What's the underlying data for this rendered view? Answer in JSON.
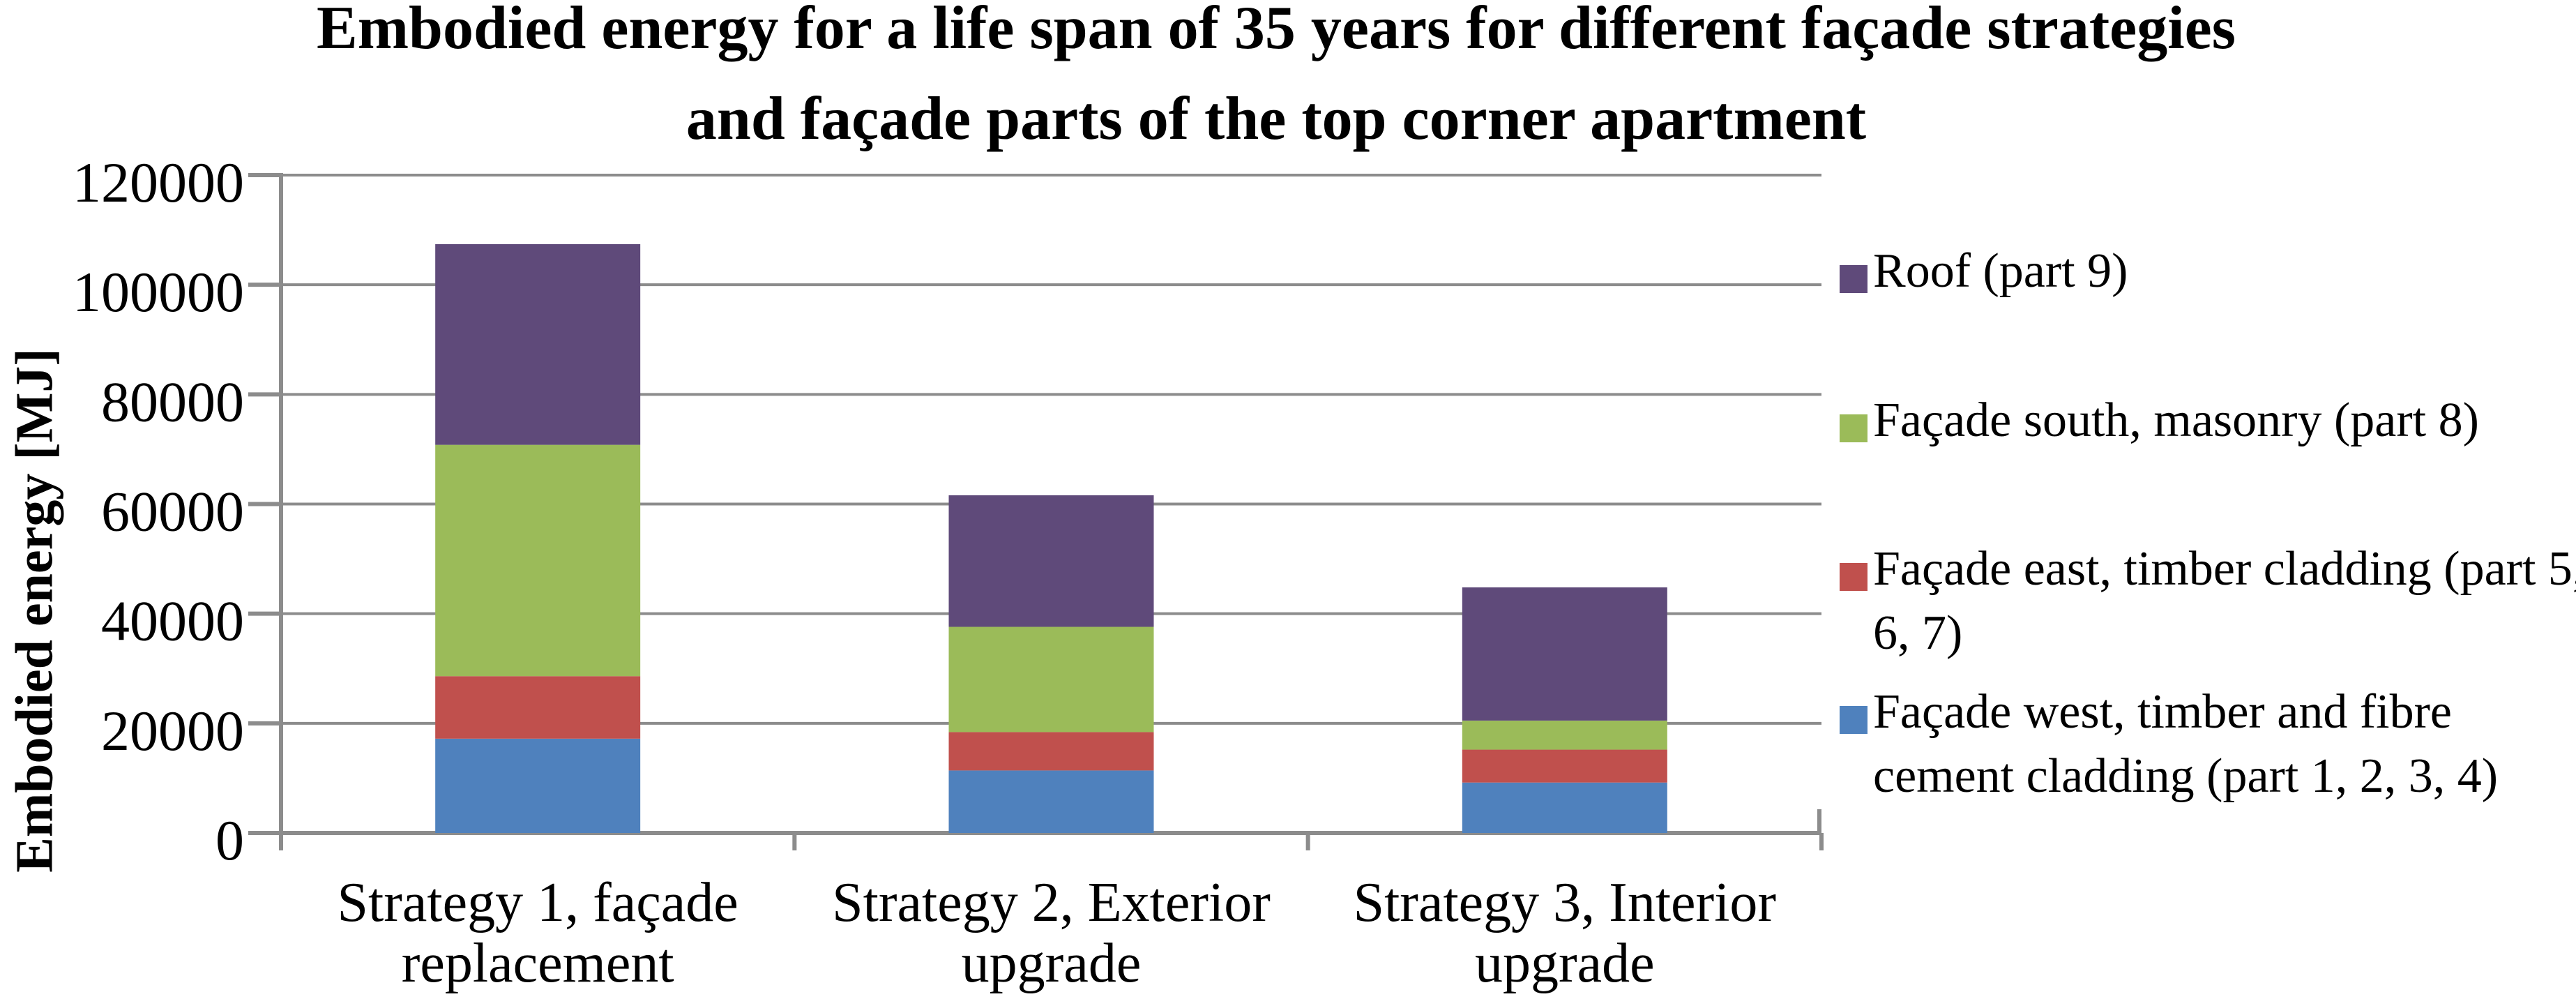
{
  "page": {
    "background": "#FFFFFF",
    "text_color": "#000000"
  },
  "chart_data": {
    "type": "bar",
    "stacked": true,
    "title": "Embodied energy for a life span of 35 years for different façade strategies and façade parts of the top corner apartment",
    "title_lines": [
      "Embodied energy for a life span of 35 years for different façade strategies",
      "and façade parts of the top corner apartment"
    ],
    "ylabel": "Embodied energy [MJ]",
    "xlabel": "",
    "ylim": [
      0,
      120000
    ],
    "ytick_interval": 20000,
    "yticks": [
      0,
      20000,
      40000,
      60000,
      80000,
      100000,
      120000
    ],
    "grid": true,
    "grid_color": "#8C8C8C",
    "axis_color": "#8C8C8C",
    "legend_position": "right",
    "categories": [
      "Strategy 1, façade replacement",
      "Strategy 2, Exterior upgrade",
      "Strategy 3, Interior upgrade"
    ],
    "category_lines": [
      [
        "Strategy 1, façade",
        "replacement"
      ],
      [
        "Strategy 2, Exterior",
        "upgrade"
      ],
      [
        "Strategy 3, Interior",
        "upgrade"
      ]
    ],
    "series": [
      {
        "name": "Façade west, timber and fibre cement cladding (part 1, 2, 3, 4)",
        "color": "#4F81BD",
        "values": [
          17200,
          11400,
          9200
        ]
      },
      {
        "name": "Façade east, timber cladding (part 5, 6, 7)",
        "color": "#C0504D",
        "values": [
          11400,
          7000,
          6000
        ]
      },
      {
        "name": "Façade south, masonry (part 8)",
        "color": "#9BBB59",
        "values": [
          42200,
          19200,
          5300
        ]
      },
      {
        "name": "Roof (part 9)",
        "color": "#5F4A7A",
        "values": [
          36600,
          24000,
          24300
        ]
      }
    ],
    "stack_totals": [
      107400,
      61600,
      44800
    ],
    "legend": [
      {
        "label": "Roof (part 9)",
        "label_lines": [
          "Roof (part 9)"
        ],
        "color": "#5F4A7A"
      },
      {
        "label": "Façade south, masonry (part 8)",
        "label_lines": [
          "Façade south, masonry (part 8)"
        ],
        "color": "#9BBB59"
      },
      {
        "label": "Façade east, timber cladding (part 5, 6, 7)",
        "label_lines": [
          "Façade east, timber cladding (part 5,",
          "6, 7)"
        ],
        "color": "#C0504D"
      },
      {
        "label": "Façade west, timber and fibre cement cladding (part 1, 2, 3, 4)",
        "label_lines": [
          "Façade west, timber and fibre",
          "cement cladding (part 1, 2, 3, 4)"
        ],
        "color": "#4F81BD"
      }
    ]
  }
}
